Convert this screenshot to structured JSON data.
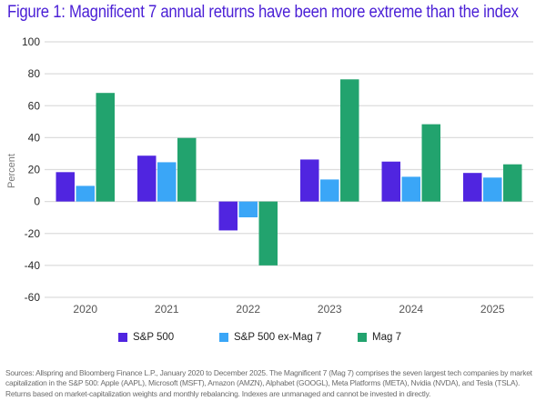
{
  "chart_data": {
    "type": "bar",
    "title": "Figure 1: Magnificent 7 annual returns have been more extreme than the index",
    "xlabel": "",
    "ylabel": "Percent",
    "ylim": [
      -60,
      100
    ],
    "yticks": [
      100,
      80,
      60,
      40,
      20,
      0,
      -20,
      -40,
      -60
    ],
    "grid": true,
    "legend_position": "bottom",
    "categories": [
      "2020",
      "2021",
      "2022",
      "2023",
      "2024",
      "2025"
    ],
    "series": [
      {
        "name": "S&P 500",
        "color": "#5025e0",
        "values": [
          18.4,
          28.7,
          -18.1,
          26.3,
          25.0,
          17.9
        ]
      },
      {
        "name": "S&P 500 ex-Mag 7",
        "color": "#3aa6f7",
        "values": [
          9.8,
          24.6,
          -9.9,
          13.8,
          15.5,
          15.0
        ]
      },
      {
        "name": "Mag 7",
        "color": "#22a36e",
        "values": [
          68.0,
          39.8,
          -40.0,
          76.5,
          48.4,
          23.3
        ]
      }
    ]
  },
  "footnote": "Sources: Allspring and Bloomberg Finance L.P., January 2020 to December 2025. The Magnificent 7 (Mag 7) comprises the seven largest tech companies by market capitalization in the S&P 500: Apple (AAPL), Microsoft (MSFT), Amazon (AMZN), Alphabet (GOOGL), Meta Platforms (META), Nvidia (NVDA), and Tesla (TSLA). Returns based on market-capitalization weights and monthly rebalancing. Indexes are unmanaged and cannot be invested in directly."
}
